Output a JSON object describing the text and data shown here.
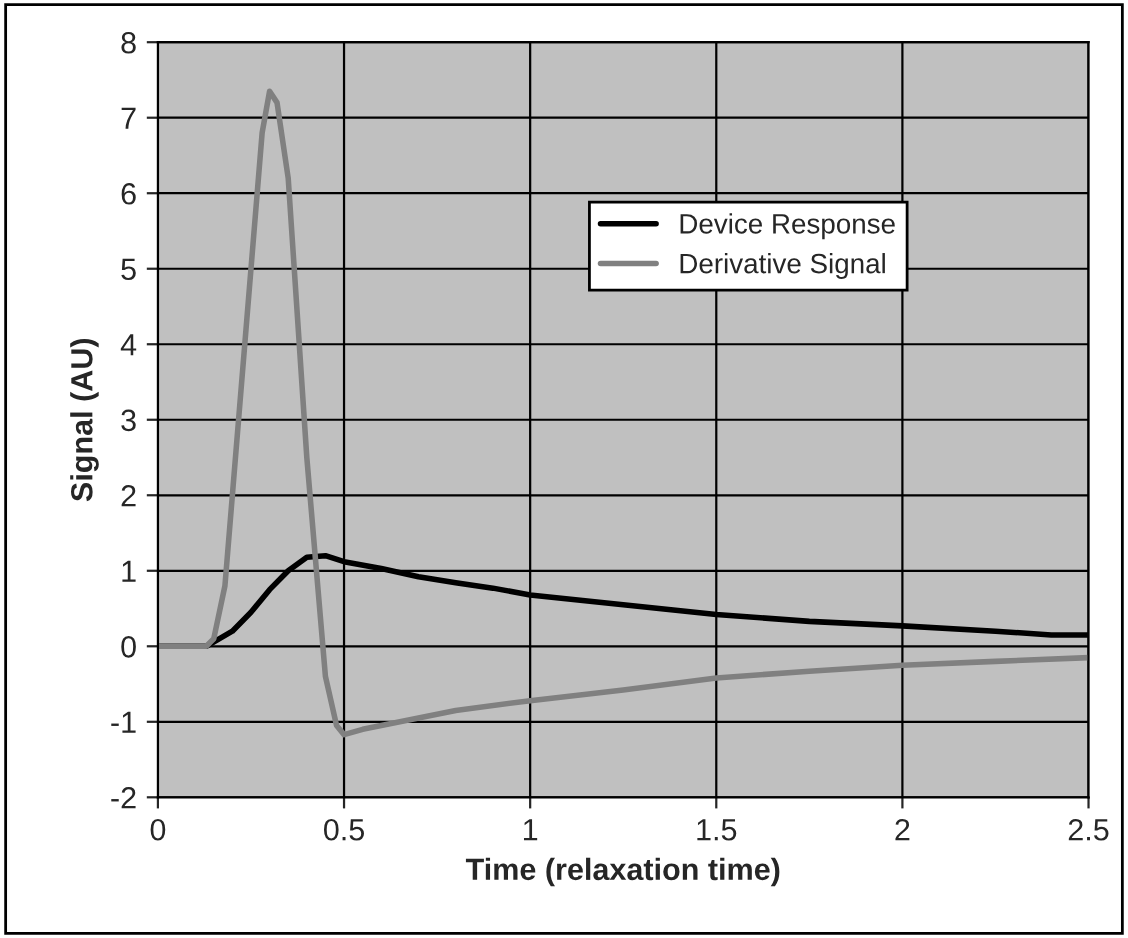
{
  "chart_data": {
    "type": "line",
    "xlabel": "Time (relaxation time)",
    "ylabel": "Signal (AU)",
    "xlim": [
      0,
      2.5
    ],
    "xticks": [
      0,
      0.5,
      1,
      1.5,
      2,
      2.5
    ],
    "ylim": [
      -2,
      8
    ],
    "yticks": [
      -2,
      -1,
      0,
      1,
      2,
      3,
      4,
      5,
      6,
      7,
      8
    ],
    "grid": true,
    "legend": "top right",
    "marker": "none",
    "line_style": "solid",
    "series": [
      {
        "name": "Device Response",
        "color": "#000000",
        "x": [
          0,
          0.13,
          0.2,
          0.25,
          0.3,
          0.35,
          0.4,
          0.45,
          0.5,
          0.6,
          0.7,
          0.8,
          0.9,
          1.0,
          1.25,
          1.5,
          1.75,
          2.0,
          2.25,
          2.4,
          2.5
        ],
        "values": [
          0,
          0,
          0.2,
          0.45,
          0.75,
          1.0,
          1.18,
          1.2,
          1.12,
          1.03,
          0.92,
          0.84,
          0.77,
          0.68,
          0.55,
          0.42,
          0.33,
          0.27,
          0.2,
          0.15,
          0.15
        ]
      },
      {
        "name": "Derivative Signal",
        "color": "#808080",
        "x": [
          0,
          0.13,
          0.15,
          0.18,
          0.2,
          0.25,
          0.28,
          0.3,
          0.32,
          0.35,
          0.4,
          0.45,
          0.48,
          0.5,
          0.55,
          0.6,
          0.7,
          0.8,
          1.0,
          1.25,
          1.5,
          1.75,
          2.0,
          2.25,
          2.5
        ],
        "values": [
          0,
          0,
          0.1,
          0.8,
          2,
          5,
          6.8,
          7.35,
          7.2,
          6.2,
          2.5,
          -0.4,
          -1.05,
          -1.17,
          -1.1,
          -1.05,
          -0.95,
          -0.85,
          -0.72,
          -0.58,
          -0.42,
          -0.33,
          -0.25,
          -0.2,
          -0.15
        ]
      }
    ]
  }
}
